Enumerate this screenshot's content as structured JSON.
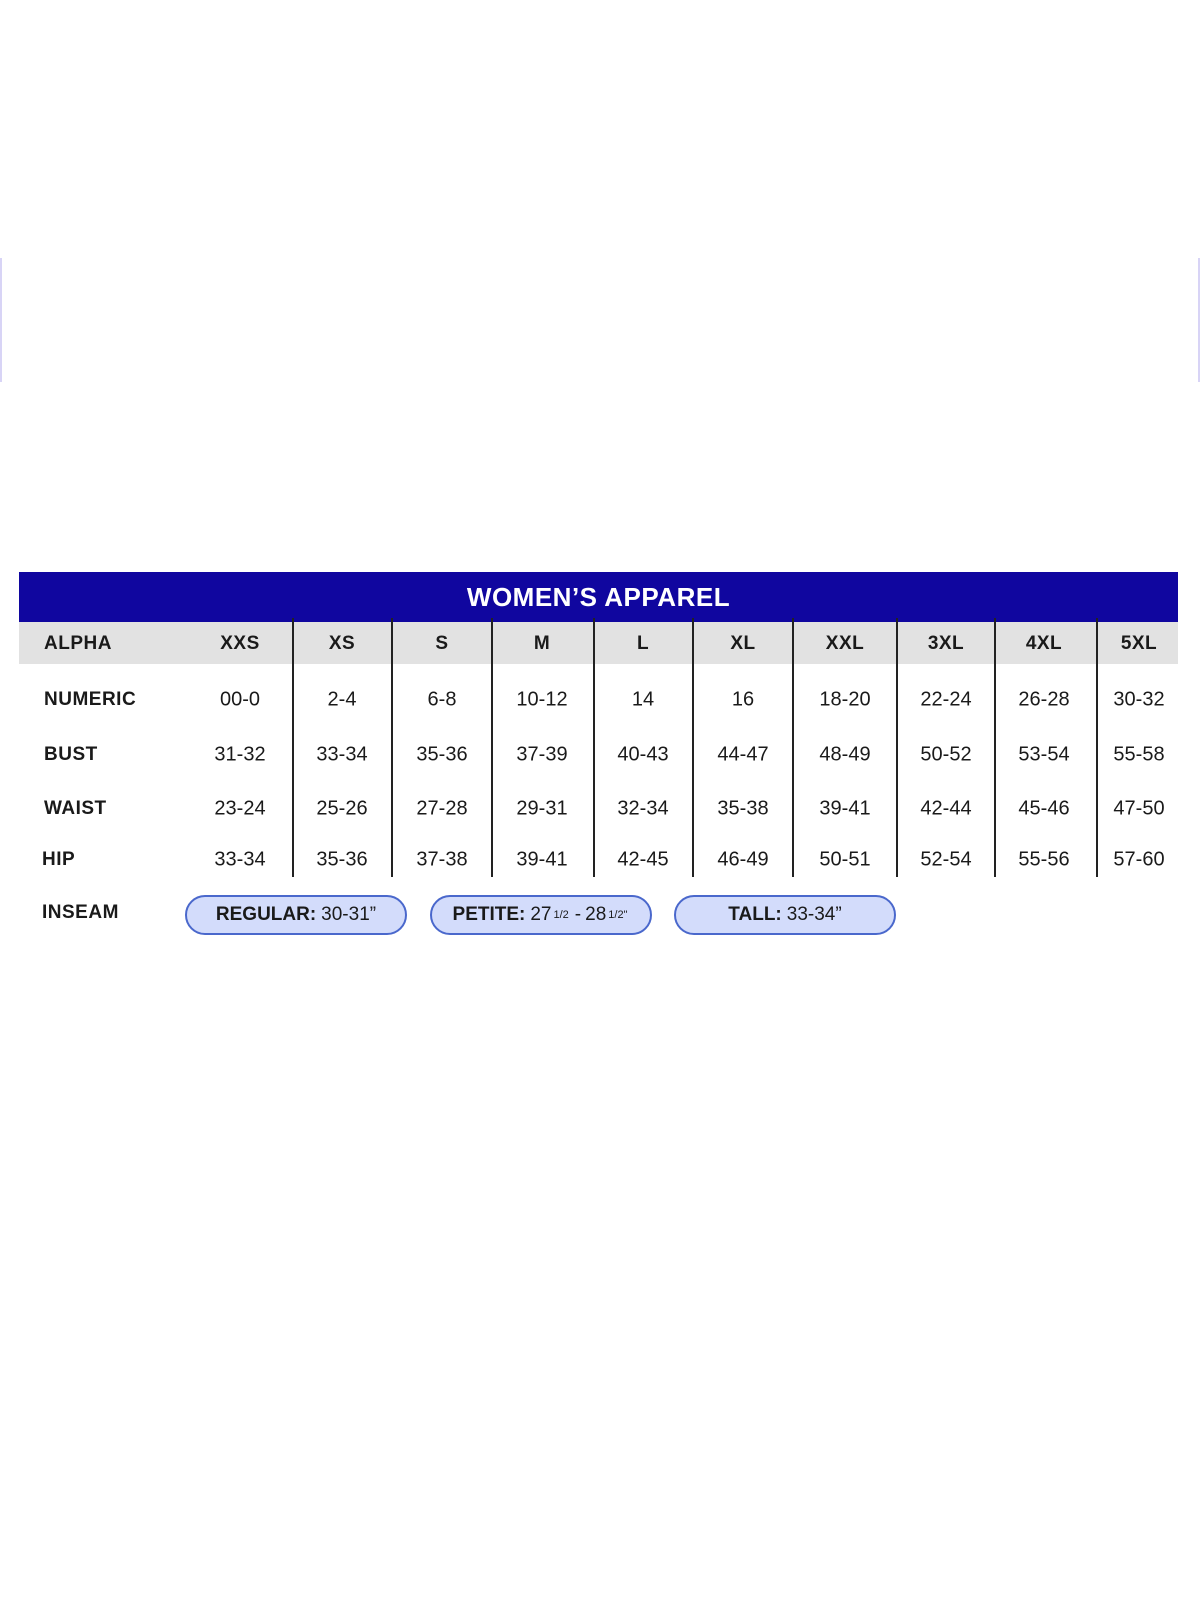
{
  "title": "WOMEN’S APPAREL",
  "colors": {
    "banner": "#10069f",
    "header_row": "#e2e2e2",
    "pill_fill": "#d3dcfb",
    "pill_border": "#4a68cc"
  },
  "columns": [
    "XXS",
    "XS",
    "S",
    "M",
    "L",
    "XL",
    "XXL",
    "3XL",
    "4XL",
    "5XL"
  ],
  "header_label": "ALPHA",
  "rows": [
    {
      "label": "NUMERIC",
      "values": [
        "00-0",
        "2-4",
        "6-8",
        "10-12",
        "14",
        "16",
        "18-20",
        "22-24",
        "26-28",
        "30-32"
      ]
    },
    {
      "label": "BUST",
      "values": [
        "31-32",
        "33-34",
        "35-36",
        "37-39",
        "40-43",
        "44-47",
        "48-49",
        "50-52",
        "53-54",
        "55-58"
      ]
    },
    {
      "label": "WAIST",
      "values": [
        "23-24",
        "25-26",
        "27-28",
        "29-31",
        "32-34",
        "35-38",
        "39-41",
        "42-44",
        "45-46",
        "47-50"
      ]
    },
    {
      "label": "HIP",
      "values": [
        "33-34",
        "35-36",
        "37-38",
        "39-41",
        "42-45",
        "46-49",
        "50-51",
        "52-54",
        "55-56",
        "57-60"
      ]
    }
  ],
  "inseam": {
    "label": "INSEAM",
    "regular": {
      "name": "REGULAR:",
      "value": "30-31”"
    },
    "petite": {
      "name": "PETITE:",
      "a": "27",
      "a_frac": "1/2",
      "sep": "-",
      "b": "28",
      "b_frac": "1/2\""
    },
    "tall": {
      "name": "TALL:",
      "value": "33-34”"
    }
  }
}
